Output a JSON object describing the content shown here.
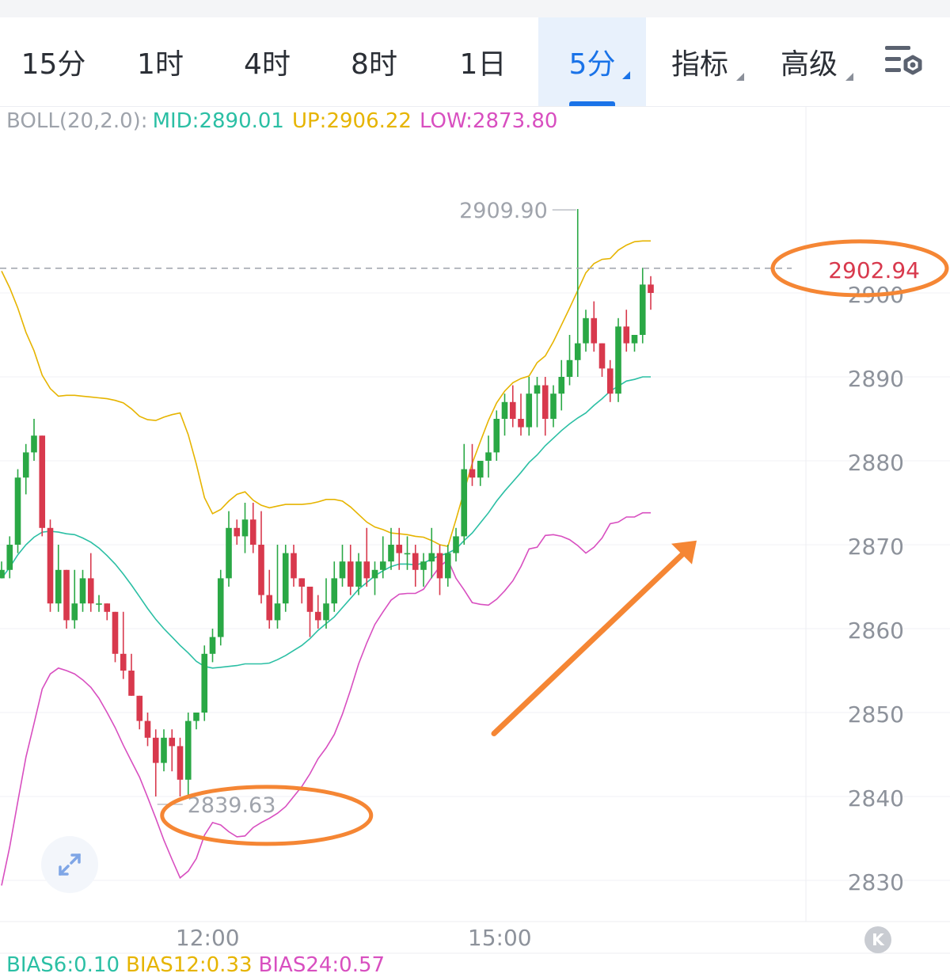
{
  "tabs": [
    {
      "label": "15分"
    },
    {
      "label": "1时"
    },
    {
      "label": "4时"
    },
    {
      "label": "8时"
    },
    {
      "label": "1日"
    },
    {
      "label": "5分",
      "active": true,
      "dropdown": true
    },
    {
      "label": "指标",
      "dropdown": true
    },
    {
      "label": "高级",
      "dropdown": true
    }
  ],
  "settings_icon": "chart-settings-icon",
  "indicator": {
    "name": "BOLL(20,2.0):",
    "mid": "MID:2890.01",
    "up": "UP:2906.22",
    "low": "LOW:2873.80",
    "colors": {
      "name": "#9ea3ab",
      "mid": "#2bbfa4",
      "up": "#e6b400",
      "low": "#d84fc0"
    }
  },
  "bias": {
    "bias6": "BIAS6:0.10",
    "bias12": "BIAS12:0.33",
    "bias24": "BIAS24:0.57",
    "colors": {
      "bias6": "#2bbfa4",
      "bias12": "#e6b400",
      "bias24": "#d84fc0"
    }
  },
  "colors": {
    "up": "#2aa845",
    "down": "#d8394d",
    "annotation": "#f58634",
    "price_tag": "#d8394d"
  },
  "chart_data": {
    "type": "candlestick",
    "interval": "5分",
    "ylim": [
      2826,
      2916
    ],
    "y_ticks": [
      "2900",
      "2890",
      "2880",
      "2870",
      "2860",
      "2850",
      "2840",
      "2830"
    ],
    "x_tick_labels": [
      {
        "index": 25,
        "label": "12:00"
      },
      {
        "index": 61,
        "label": "15:00"
      }
    ],
    "current_price": "2902.94",
    "max_label": "2909.90",
    "min_label": "2839.63",
    "candles": [
      [
        2866,
        2868,
        2866,
        2867
      ],
      [
        2867,
        2871,
        2866,
        2870
      ],
      [
        2870,
        2879,
        2869,
        2878
      ],
      [
        2878,
        2882,
        2876,
        2881
      ],
      [
        2881,
        2885,
        2880,
        2883
      ],
      [
        2883,
        2883,
        2871,
        2872
      ],
      [
        2872,
        2873,
        2862,
        2863
      ],
      [
        2863,
        2870,
        2862,
        2867
      ],
      [
        2867,
        2867,
        2860,
        2861
      ],
      [
        2861,
        2867,
        2860,
        2863
      ],
      [
        2863,
        2867,
        2862,
        2866
      ],
      [
        2866,
        2869,
        2862,
        2863
      ],
      [
        2863,
        2864,
        2862,
        2863
      ],
      [
        2863,
        2863,
        2861,
        2862
      ],
      [
        2862,
        2862,
        2856,
        2857
      ],
      [
        2857,
        2862,
        2854,
        2855
      ],
      [
        2855,
        2857,
        2852,
        2852
      ],
      [
        2852,
        2852,
        2848,
        2849
      ],
      [
        2849,
        2850,
        2846,
        2847
      ],
      [
        2847,
        2848,
        2840,
        2844
      ],
      [
        2844,
        2848,
        2843,
        2847
      ],
      [
        2847,
        2848,
        2843,
        2846
      ],
      [
        2846,
        2847,
        2840,
        2842
      ],
      [
        2842,
        2850,
        2840,
        2849
      ],
      [
        2849,
        2850,
        2848,
        2850
      ],
      [
        2850,
        2858,
        2849,
        2857
      ],
      [
        2857,
        2860,
        2856,
        2859
      ],
      [
        2859,
        2867,
        2858,
        2866
      ],
      [
        2866,
        2874,
        2865,
        2872
      ],
      [
        2872,
        2873,
        2870,
        2871
      ],
      [
        2871,
        2875,
        2869,
        2873
      ],
      [
        2873,
        2875,
        2869,
        2870
      ],
      [
        2870,
        2874,
        2863,
        2864
      ],
      [
        2864,
        2867,
        2860,
        2861
      ],
      [
        2861,
        2870,
        2860,
        2863
      ],
      [
        2863,
        2870,
        2862,
        2869
      ],
      [
        2869,
        2870,
        2865,
        2866
      ],
      [
        2866,
        2866,
        2863,
        2865
      ],
      [
        2865,
        2865,
        2859,
        2862
      ],
      [
        2862,
        2864,
        2860,
        2861
      ],
      [
        2861,
        2866,
        2860,
        2863
      ],
      [
        2863,
        2868,
        2862,
        2866
      ],
      [
        2866,
        2870,
        2865,
        2868
      ],
      [
        2868,
        2870,
        2864,
        2865
      ],
      [
        2865,
        2869,
        2864,
        2868
      ],
      [
        2868,
        2872,
        2865,
        2866
      ],
      [
        2866,
        2868,
        2864,
        2867
      ],
      [
        2867,
        2871,
        2866,
        2868
      ],
      [
        2868,
        2872,
        2867,
        2870
      ],
      [
        2870,
        2872,
        2867,
        2869
      ],
      [
        2869,
        2871,
        2867,
        2869
      ],
      [
        2869,
        2870,
        2865,
        2867
      ],
      [
        2867,
        2869,
        2865,
        2868
      ],
      [
        2868,
        2872,
        2866,
        2869
      ],
      [
        2869,
        2870,
        2864,
        2866
      ],
      [
        2866,
        2870,
        2865,
        2869
      ],
      [
        2869,
        2872,
        2868,
        2871
      ],
      [
        2871,
        2882,
        2870,
        2879
      ],
      [
        2879,
        2882,
        2877,
        2878
      ],
      [
        2878,
        2880,
        2877,
        2880
      ],
      [
        2880,
        2883,
        2878,
        2881
      ],
      [
        2881,
        2886,
        2880,
        2885
      ],
      [
        2885,
        2888,
        2883,
        2887
      ],
      [
        2887,
        2889,
        2884,
        2885
      ],
      [
        2885,
        2888,
        2883,
        2884
      ],
      [
        2884,
        2890,
        2883,
        2888
      ],
      [
        2888,
        2890,
        2884,
        2889
      ],
      [
        2889,
        2890,
        2883,
        2885
      ],
      [
        2885,
        2889,
        2884,
        2888
      ],
      [
        2888,
        2892,
        2886,
        2890
      ],
      [
        2890,
        2895,
        2889,
        2892
      ],
      [
        2892,
        2910,
        2890,
        2894
      ],
      [
        2894,
        2898,
        2893,
        2897
      ],
      [
        2897,
        2899,
        2893,
        2894
      ],
      [
        2894,
        2894,
        2890,
        2891
      ],
      [
        2891,
        2892,
        2887,
        2888
      ],
      [
        2888,
        2897,
        2887,
        2896
      ],
      [
        2896,
        2898,
        2893,
        2894
      ],
      [
        2894,
        2895,
        2893,
        2895
      ],
      [
        2895,
        2903,
        2894,
        2901
      ],
      [
        2901,
        2902,
        2898,
        2900
      ]
    ],
    "boll_up": [
      2902.6,
      2900.6,
      2898.2,
      2895.3,
      2893.1,
      2890.2,
      2888.6,
      2887.7,
      2887.8,
      2887.8,
      2887.7,
      2887.6,
      2887.5,
      2887.4,
      2887.2,
      2886.9,
      2886.2,
      2885.3,
      2884.9,
      2884.8,
      2885.2,
      2885.5,
      2885.7,
      2883.1,
      2879.6,
      2875.6,
      2873.7,
      2874.2,
      2875.2,
      2876.0,
      2876.3,
      2875.3,
      2874.7,
      2874.4,
      2874.6,
      2874.8,
      2874.8,
      2874.8,
      2874.9,
      2875.1,
      2875.4,
      2875.4,
      2875.2,
      2874.5,
      2873.6,
      2872.7,
      2872.1,
      2871.8,
      2871.4,
      2871.3,
      2871.2,
      2871.0,
      2870.9,
      2870.5,
      2870.0,
      2869.8,
      2873.0,
      2876.4,
      2879.7,
      2882.3,
      2884.8,
      2886.9,
      2888.3,
      2889.3,
      2889.8,
      2890.1,
      2891.7,
      2892.5,
      2894.2,
      2896.2,
      2898.2,
      2900.3,
      2902.4,
      2903.5,
      2904.0,
      2904.1,
      2905.1,
      2905.7,
      2906.1,
      2906.2,
      2906.2
    ],
    "boll_mid": [
      2866.0,
      2867.3,
      2868.8,
      2870.0,
      2870.9,
      2871.5,
      2871.6,
      2871.5,
      2871.3,
      2871.2,
      2870.8,
      2870.3,
      2869.6,
      2868.7,
      2867.7,
      2866.5,
      2865.2,
      2863.8,
      2862.4,
      2861.1,
      2860.0,
      2859.0,
      2858.0,
      2857.1,
      2856.1,
      2855.5,
      2855.3,
      2855.4,
      2855.5,
      2855.6,
      2855.8,
      2855.8,
      2855.8,
      2855.9,
      2856.3,
      2856.8,
      2857.4,
      2858.0,
      2858.8,
      2859.8,
      2860.6,
      2861.4,
      2862.5,
      2863.6,
      2864.7,
      2865.5,
      2866.3,
      2866.9,
      2867.4,
      2867.7,
      2867.7,
      2867.6,
      2867.8,
      2868.3,
      2868.7,
      2869.0,
      2869.5,
      2870.5,
      2871.4,
      2872.6,
      2873.8,
      2875.2,
      2876.4,
      2877.5,
      2878.6,
      2879.8,
      2880.7,
      2881.8,
      2882.7,
      2883.6,
      2884.4,
      2885.1,
      2885.7,
      2886.6,
      2887.4,
      2888.3,
      2888.9,
      2889.5,
      2889.7,
      2890.0,
      2890.0
    ],
    "boll_low": [
      2829.4,
      2834.0,
      2839.4,
      2844.7,
      2848.7,
      2852.8,
      2854.6,
      2855.3,
      2855.0,
      2854.6,
      2853.9,
      2853.0,
      2851.7,
      2850.0,
      2848.2,
      2846.1,
      2844.2,
      2842.3,
      2839.9,
      2837.4,
      2834.8,
      2832.5,
      2830.3,
      2831.1,
      2832.6,
      2835.4,
      2836.9,
      2836.6,
      2835.8,
      2835.2,
      2835.3,
      2836.3,
      2836.9,
      2837.4,
      2838.0,
      2838.8,
      2840.0,
      2841.2,
      2842.7,
      2844.5,
      2845.8,
      2847.4,
      2849.8,
      2852.7,
      2855.8,
      2858.3,
      2860.5,
      2862.0,
      2863.4,
      2864.1,
      2864.2,
      2864.2,
      2864.7,
      2866.1,
      2867.4,
      2868.2,
      2866.0,
      2864.6,
      2863.1,
      2862.9,
      2862.8,
      2863.5,
      2864.5,
      2865.7,
      2867.4,
      2869.5,
      2869.7,
      2871.1,
      2871.2,
      2871.0,
      2870.6,
      2869.9,
      2869.0,
      2869.7,
      2870.8,
      2872.5,
      2872.7,
      2873.3,
      2873.3,
      2873.8,
      2873.8
    ]
  }
}
